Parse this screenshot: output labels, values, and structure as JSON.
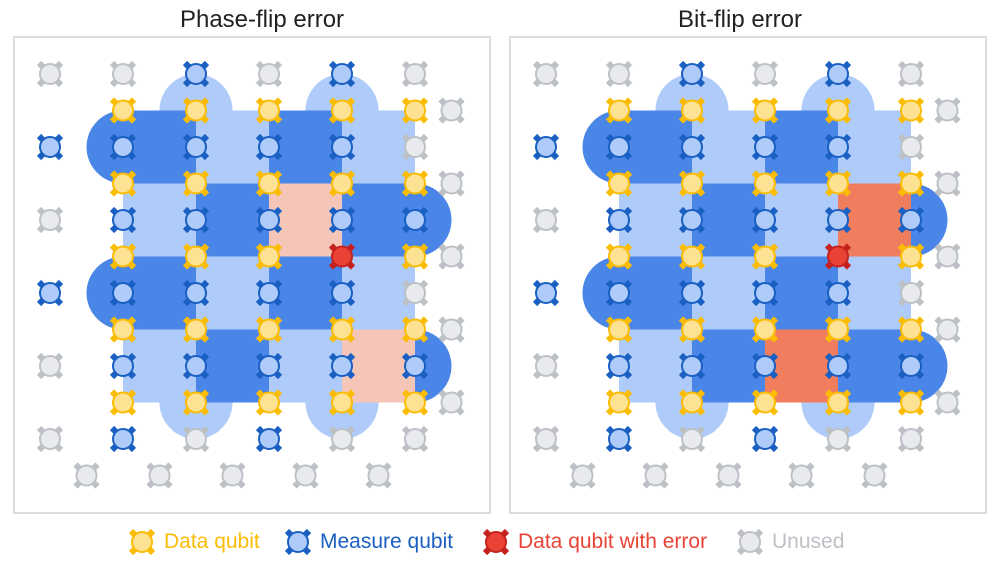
{
  "panels": [
    {
      "title": "Phase-flip error",
      "error_type": "phase-flip",
      "error_qubit": [
        4,
        3
      ],
      "highlighted_plaquettes": [
        [
          3,
          2
        ],
        [
          4,
          4
        ]
      ]
    },
    {
      "title": "Bit-flip error",
      "error_type": "bit-flip",
      "error_qubit": [
        4,
        3
      ],
      "highlighted_plaquettes": [
        [
          4,
          2
        ],
        [
          3,
          4
        ]
      ]
    }
  ],
  "legend": {
    "data": "Data qubit",
    "measure": "Measure qubit",
    "error": "Data qubit with error",
    "unused": "Unused"
  },
  "colors": {
    "data": "#fbbc04",
    "data_fill": "#fde293",
    "measure": "#1a5fc2",
    "measure_fill": "#aecbfa",
    "error": "#c5221f",
    "error_fill": "#ea4335",
    "unused": "#bdc1c6",
    "unused_fill": "#e8eaed",
    "dark_plaquette": "#4a86e8",
    "light_plaquette": "#aecbfa",
    "phase_highlight": "#f5c6b8",
    "bit_highlight": "#f07d5e"
  },
  "icons": {
    "data": "data-qubit-icon",
    "measure": "measure-qubit-icon",
    "error": "error-qubit-icon",
    "unused": "unused-qubit-icon"
  }
}
